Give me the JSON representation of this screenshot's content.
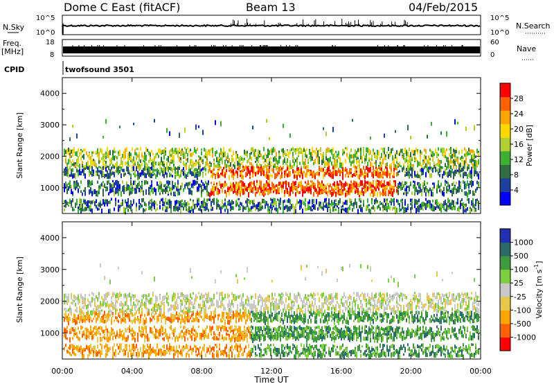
{
  "header": {
    "station": "Dome C East (fitACF)",
    "beam": "Beam 13",
    "date": "04/Feb/2015"
  },
  "left_labels": {
    "nsky": "N.Sky",
    "freq": "Freq.",
    "freq_unit": "[MHz]",
    "cpid": "CPID"
  },
  "right_labels": {
    "nsearch": "N.Search",
    "nave": "Nave"
  },
  "cpid_text": "twofsound 3501",
  "noise_ticks": {
    "left_top": "10^5",
    "left_bottom": "10^0",
    "right_top": "10^5",
    "right_bottom": "10^0"
  },
  "freq_ticks": {
    "left_top": "18",
    "left_bottom": "8",
    "right_top": "60",
    "right_bottom": "0"
  },
  "x_axis": {
    "label": "Time UT",
    "ticks": [
      "00:00",
      "04:00",
      "08:00",
      "12:00",
      "16:00",
      "20:00",
      "00:00"
    ]
  },
  "colors": {
    "power_scale": [
      "#0000ff",
      "#1f3fa0",
      "#2f6f3f",
      "#3cb030",
      "#b0d030",
      "#ffd700",
      "#ffa500",
      "#ff6000",
      "#ff0000"
    ],
    "velocity_scale": [
      "#ff0000",
      "#ff6000",
      "#ffa500",
      "#e8c84a",
      "#c8c8c8",
      "#7ccf3a",
      "#3d9a3d",
      "#2a6a6a",
      "#2030b0"
    ]
  },
  "chart_data": [
    {
      "type": "line",
      "name": "noise",
      "series": [
        {
          "name": "N.Sky",
          "values": []
        },
        {
          "name": "N.Search",
          "values": []
        }
      ],
      "xlim": [
        "00:00",
        "24:00"
      ],
      "ylim_left": [
        1,
        100000
      ],
      "ylim_right": [
        1,
        100000
      ],
      "scale": "log"
    },
    {
      "type": "line",
      "name": "frequency",
      "series": [
        {
          "name": "Freq.",
          "values": []
        },
        {
          "name": "Nave",
          "values": []
        }
      ],
      "xlim": [
        "00:00",
        "24:00"
      ],
      "ylim_left": [
        8,
        18
      ],
      "ylim_right": [
        0,
        60
      ]
    },
    {
      "type": "heatmap",
      "name": "power",
      "ylabel": "Slant Range [km]",
      "yticks": [
        "1000",
        "2000",
        "3000",
        "4000"
      ],
      "ylim": [
        180,
        4500
      ],
      "xlim": [
        "00:00",
        "24:00"
      ],
      "colorbar_label": "Power [dB]",
      "colorbar_ticks": [
        "4",
        "8",
        "12",
        "16",
        "20",
        "24",
        "28"
      ],
      "clim": [
        0,
        32
      ]
    },
    {
      "type": "heatmap",
      "name": "velocity",
      "ylabel": "Slant Range [km]",
      "yticks": [
        "1000",
        "2000",
        "3000",
        "4000"
      ],
      "ylim": [
        180,
        4500
      ],
      "xlim": [
        "00:00",
        "24:00"
      ],
      "colorbar_label": "Velocity [m s^-1]",
      "colorbar_ticks": [
        "1000",
        "500",
        "100",
        "25",
        "-25",
        "-100",
        "-500",
        "-1000"
      ],
      "grid": false
    }
  ]
}
